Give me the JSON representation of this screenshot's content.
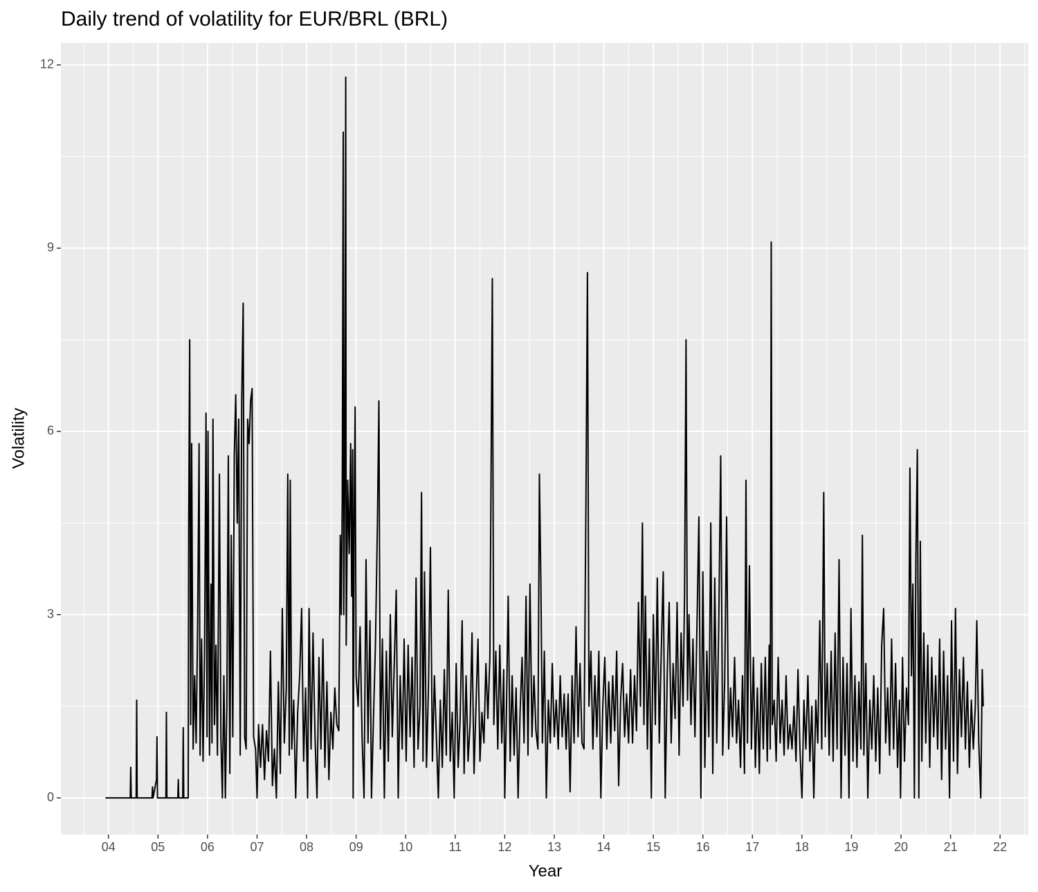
{
  "chart_data": {
    "type": "line",
    "title": "Daily trend of volatility for EUR/BRL (BRL)",
    "x_label": "Year",
    "y_label": "Volatility",
    "x": [
      2003.94,
      2004.44,
      2004.45,
      2004.46,
      2004.56,
      2004.57,
      2004.58,
      2004.88,
      2004.89,
      2004.9,
      2004.97,
      2004.98,
      2004.99,
      2005.16,
      2005.17,
      2005.18,
      2005.4,
      2005.41,
      2005.42,
      2005.5,
      2005.51,
      2005.52,
      2005.61,
      2005.62,
      2005.64,
      2005.66,
      2005.68,
      2005.71,
      2005.74,
      2005.77,
      2005.8,
      2005.83,
      2005.85,
      2005.88,
      2005.91,
      2005.94,
      2005.97,
      2005.99,
      2006.01,
      2006.04,
      2006.07,
      2006.09,
      2006.11,
      2006.14,
      2006.17,
      2006.2,
      2006.24,
      2006.27,
      2006.3,
      2006.33,
      2006.36,
      2006.39,
      2006.42,
      2006.45,
      2006.48,
      2006.51,
      2006.54,
      2006.57,
      2006.6,
      2006.63,
      2006.66,
      2006.69,
      2006.72,
      2006.75,
      2006.78,
      2006.81,
      2006.84,
      2006.87,
      2006.9,
      2006.93,
      2006.97,
      2007.0,
      2007.03,
      2007.07,
      2007.11,
      2007.15,
      2007.19,
      2007.23,
      2007.27,
      2007.31,
      2007.35,
      2007.39,
      2007.43,
      2007.47,
      2007.51,
      2007.55,
      2007.59,
      2007.62,
      2007.65,
      2007.67,
      2007.7,
      2007.74,
      2007.78,
      2007.82,
      2007.86,
      2007.9,
      2007.94,
      2007.98,
      2008.02,
      2008.05,
      2008.09,
      2008.13,
      2008.17,
      2008.21,
      2008.25,
      2008.29,
      2008.33,
      2008.37,
      2008.41,
      2008.45,
      2008.49,
      2008.53,
      2008.57,
      2008.61,
      2008.65,
      2008.68,
      2008.7,
      2008.72,
      2008.74,
      2008.75,
      2008.77,
      2008.79,
      2008.8,
      2008.83,
      2008.86,
      2008.89,
      2008.91,
      2008.93,
      2008.94,
      2008.96,
      2008.98,
      2009.0,
      2009.04,
      2009.08,
      2009.12,
      2009.16,
      2009.2,
      2009.24,
      2009.28,
      2009.31,
      2009.35,
      2009.39,
      2009.43,
      2009.46,
      2009.49,
      2009.53,
      2009.57,
      2009.61,
      2009.65,
      2009.69,
      2009.73,
      2009.77,
      2009.81,
      2009.85,
      2009.89,
      2009.93,
      2009.97,
      2010.01,
      2010.05,
      2010.09,
      2010.13,
      2010.17,
      2010.21,
      2010.25,
      2010.29,
      2010.32,
      2010.35,
      2010.38,
      2010.42,
      2010.46,
      2010.5,
      2010.54,
      2010.58,
      2010.62,
      2010.66,
      2010.7,
      2010.74,
      2010.78,
      2010.82,
      2010.86,
      2010.9,
      2010.94,
      2010.98,
      2011.02,
      2011.06,
      2011.1,
      2011.14,
      2011.18,
      2011.22,
      2011.26,
      2011.3,
      2011.34,
      2011.38,
      2011.42,
      2011.46,
      2011.5,
      2011.54,
      2011.58,
      2011.62,
      2011.66,
      2011.7,
      2011.75,
      2011.78,
      2011.82,
      2011.86,
      2011.9,
      2011.94,
      2011.98,
      2012.0,
      2012.03,
      2012.07,
      2012.11,
      2012.15,
      2012.19,
      2012.23,
      2012.27,
      2012.31,
      2012.35,
      2012.39,
      2012.43,
      2012.47,
      2012.51,
      2012.55,
      2012.59,
      2012.63,
      2012.67,
      2012.7,
      2012.73,
      2012.76,
      2012.8,
      2012.84,
      2012.88,
      2012.92,
      2012.96,
      2013.0,
      2013.04,
      2013.08,
      2013.12,
      2013.16,
      2013.2,
      2013.24,
      2013.28,
      2013.32,
      2013.36,
      2013.4,
      2013.44,
      2013.48,
      2013.52,
      2013.56,
      2013.6,
      2013.64,
      2013.67,
      2013.7,
      2013.74,
      2013.78,
      2013.82,
      2013.86,
      2013.9,
      2013.94,
      2013.98,
      2014.02,
      2014.06,
      2014.1,
      2014.14,
      2014.18,
      2014.22,
      2014.26,
      2014.3,
      2014.34,
      2014.38,
      2014.42,
      2014.46,
      2014.5,
      2014.54,
      2014.58,
      2014.62,
      2014.66,
      2014.7,
      2014.74,
      2014.78,
      2014.81,
      2014.84,
      2014.88,
      2014.92,
      2014.96,
      2015.0,
      2015.04,
      2015.08,
      2015.12,
      2015.16,
      2015.2,
      2015.24,
      2015.28,
      2015.32,
      2015.36,
      2015.4,
      2015.44,
      2015.48,
      2015.52,
      2015.56,
      2015.6,
      2015.63,
      2015.66,
      2015.69,
      2015.72,
      2015.76,
      2015.8,
      2015.84,
      2015.88,
      2015.92,
      2015.96,
      2016.0,
      2016.04,
      2016.08,
      2016.12,
      2016.16,
      2016.2,
      2016.24,
      2016.28,
      2016.32,
      2016.36,
      2016.4,
      2016.44,
      2016.48,
      2016.52,
      2016.56,
      2016.6,
      2016.64,
      2016.68,
      2016.72,
      2016.76,
      2016.8,
      2016.84,
      2016.87,
      2016.9,
      2016.94,
      2016.98,
      2017.02,
      2017.06,
      2017.1,
      2017.14,
      2017.18,
      2017.22,
      2017.26,
      2017.3,
      2017.34,
      2017.36,
      2017.38,
      2017.4,
      2017.44,
      2017.48,
      2017.52,
      2017.56,
      2017.6,
      2017.64,
      2017.68,
      2017.72,
      2017.76,
      2017.8,
      2017.84,
      2017.88,
      2017.92,
      2017.96,
      2018.0,
      2018.04,
      2018.08,
      2018.12,
      2018.16,
      2018.2,
      2018.24,
      2018.28,
      2018.32,
      2018.36,
      2018.4,
      2018.44,
      2018.47,
      2018.51,
      2018.55,
      2018.59,
      2018.63,
      2018.67,
      2018.71,
      2018.75,
      2018.79,
      2018.83,
      2018.87,
      2018.91,
      2018.95,
      2018.99,
      2019.03,
      2019.07,
      2019.11,
      2019.15,
      2019.19,
      2019.22,
      2019.25,
      2019.29,
      2019.33,
      2019.37,
      2019.41,
      2019.45,
      2019.49,
      2019.53,
      2019.57,
      2019.61,
      2019.65,
      2019.69,
      2019.73,
      2019.77,
      2019.81,
      2019.85,
      2019.89,
      2019.93,
      2019.97,
      2019.99,
      2020.03,
      2020.07,
      2020.11,
      2020.15,
      2020.18,
      2020.21,
      2020.24,
      2020.27,
      2020.3,
      2020.33,
      2020.36,
      2020.39,
      2020.42,
      2020.46,
      2020.5,
      2020.54,
      2020.58,
      2020.62,
      2020.66,
      2020.7,
      2020.74,
      2020.78,
      2020.82,
      2020.86,
      2020.9,
      2020.94,
      2020.98,
      2021.02,
      2021.06,
      2021.1,
      2021.14,
      2021.18,
      2021.22,
      2021.26,
      2021.3,
      2021.34,
      2021.38,
      2021.42,
      2021.46,
      2021.5,
      2021.53,
      2021.57,
      2021.61,
      2021.64,
      2021.66
    ],
    "series": [
      {
        "color": "#000000",
        "values": [
          0,
          0,
          0.5,
          0,
          0,
          1.6,
          0,
          0,
          0.18,
          0,
          0.3,
          1.0,
          0,
          0,
          1.4,
          0,
          0,
          0.3,
          0,
          0,
          1.15,
          0,
          0,
          4.4,
          7.5,
          1.2,
          5.8,
          0.8,
          2.0,
          0.9,
          2.8,
          5.8,
          0.7,
          2.6,
          0.6,
          2.4,
          6.3,
          1.0,
          6.0,
          0.7,
          3.5,
          0.9,
          6.2,
          1.2,
          2.5,
          0.7,
          5.3,
          1.0,
          0,
          2.0,
          0,
          1.5,
          5.6,
          0.4,
          4.3,
          1.0,
          5.6,
          6.6,
          4.5,
          6.2,
          0.7,
          6.5,
          8.1,
          1.0,
          0.8,
          6.2,
          5.8,
          6.5,
          6.7,
          1.0,
          0.8,
          0,
          1.2,
          0.5,
          1.2,
          0.3,
          1.1,
          0.6,
          2.4,
          0.2,
          0.8,
          0,
          1.9,
          0.4,
          3.1,
          0.9,
          1.8,
          5.3,
          0.7,
          5.2,
          0.8,
          1.6,
          0,
          1.4,
          2.0,
          3.1,
          0.6,
          1.8,
          0,
          3.1,
          0.8,
          2.7,
          1.0,
          0,
          2.3,
          0.8,
          2.6,
          0.5,
          1.9,
          0.3,
          1.4,
          0.8,
          1.8,
          1.2,
          1.1,
          4.3,
          3.0,
          4.9,
          10.9,
          3.0,
          5.2,
          11.8,
          2.5,
          5.2,
          4.0,
          5.8,
          3.3,
          5.7,
          0,
          4.5,
          6.4,
          2.0,
          1.5,
          2.8,
          1.0,
          0,
          3.9,
          0.9,
          2.9,
          0,
          1.3,
          2.5,
          4.5,
          6.5,
          0.8,
          2.6,
          0,
          2.4,
          0.6,
          3.0,
          1.0,
          2.2,
          3.4,
          0,
          2.0,
          0.8,
          2.6,
          0.6,
          2.5,
          1.0,
          2.3,
          0.5,
          3.6,
          0.8,
          1.5,
          5.0,
          0.6,
          3.7,
          0.5,
          1.8,
          4.1,
          0.6,
          2.0,
          1.0,
          0,
          1.6,
          0.5,
          2.1,
          0.7,
          3.4,
          0.6,
          1.4,
          0,
          2.2,
          0.5,
          1.3,
          2.9,
          0.4,
          2.0,
          0.6,
          1.2,
          2.7,
          0.4,
          1.5,
          2.6,
          0.6,
          1.4,
          0.9,
          2.2,
          1.3,
          2.3,
          8.5,
          1.2,
          2.4,
          0.8,
          2.5,
          0.9,
          2.1,
          0,
          1.2,
          3.3,
          0.6,
          2.0,
          0.7,
          1.8,
          0,
          1.4,
          2.3,
          0.9,
          3.3,
          0.7,
          3.5,
          1.0,
          2.0,
          1.1,
          0.8,
          5.3,
          3.5,
          0.9,
          2.4,
          0,
          1.6,
          0.9,
          2.2,
          1.0,
          1.6,
          0.8,
          2.0,
          1.0,
          1.7,
          0.8,
          1.7,
          0.1,
          2.0,
          0.9,
          2.8,
          1.0,
          2.2,
          0.9,
          0.8,
          4.9,
          8.6,
          1.5,
          2.4,
          0.8,
          2.0,
          1.0,
          2.4,
          0,
          1.5,
          2.3,
          0.8,
          1.9,
          0.9,
          2.0,
          1.1,
          2.4,
          0.2,
          1.6,
          2.2,
          1.0,
          1.7,
          0.9,
          2.1,
          0.9,
          2.0,
          1.1,
          3.2,
          1.5,
          4.5,
          1.2,
          3.3,
          0.8,
          2.6,
          0,
          3.0,
          1.2,
          3.6,
          0.9,
          2.4,
          3.7,
          0,
          2.0,
          3.2,
          0.9,
          2.2,
          1.3,
          3.2,
          0.7,
          2.7,
          1.5,
          3.3,
          7.5,
          1.6,
          3.0,
          1.2,
          2.6,
          1.0,
          2.8,
          4.6,
          0,
          3.7,
          0.5,
          2.4,
          1.0,
          4.5,
          0.4,
          3.6,
          0.9,
          2.8,
          5.6,
          0.7,
          1.9,
          4.6,
          0.8,
          1.8,
          1.0,
          2.3,
          0.9,
          1.6,
          0.5,
          2.0,
          0.4,
          5.2,
          0.9,
          3.8,
          0.8,
          2.3,
          0.5,
          1.8,
          0.4,
          2.2,
          0.8,
          2.3,
          0.6,
          2.5,
          0.8,
          9.1,
          1.2,
          1.6,
          0.6,
          2.3,
          0.9,
          1.6,
          0.7,
          2.0,
          0.8,
          1.2,
          0.8,
          1.5,
          0.6,
          2.1,
          0.8,
          0,
          1.6,
          0.8,
          2.0,
          0.6,
          1.5,
          0,
          1.6,
          0.9,
          2.9,
          0.8,
          5.0,
          1.0,
          2.2,
          0.7,
          2.4,
          0.6,
          2.7,
          0.8,
          3.9,
          0,
          2.3,
          0.7,
          2.2,
          0,
          3.1,
          0.6,
          2.0,
          0.5,
          1.9,
          0.8,
          4.3,
          0.7,
          2.2,
          0,
          1.6,
          0.8,
          2.0,
          0.6,
          1.8,
          0.4,
          2.5,
          3.1,
          0.9,
          1.8,
          0.7,
          2.6,
          0.8,
          2.2,
          0.5,
          1.6,
          0,
          2.3,
          0.6,
          1.8,
          1.2,
          5.4,
          2.0,
          3.5,
          0,
          3.9,
          5.7,
          0,
          4.2,
          0.6,
          2.7,
          0.9,
          2.5,
          0.5,
          2.3,
          1.0,
          2.0,
          0.8,
          2.6,
          0.3,
          2.4,
          0.8,
          2.0,
          0,
          2.9,
          0.6,
          3.1,
          0.4,
          2.1,
          1.0,
          2.3,
          0.8,
          1.9,
          0.5,
          1.6,
          0.8,
          1.5,
          2.9,
          0.9,
          0,
          2.1,
          1.5
        ]
      }
    ],
    "xlim": [
      2003.04,
      2022.57
    ],
    "ylim": [
      -0.6,
      12.36
    ],
    "xticks": [
      {
        "value": 2004,
        "label": "04"
      },
      {
        "value": 2005,
        "label": "05"
      },
      {
        "value": 2006,
        "label": "06"
      },
      {
        "value": 2007,
        "label": "07"
      },
      {
        "value": 2008,
        "label": "08"
      },
      {
        "value": 2009,
        "label": "09"
      },
      {
        "value": 2010,
        "label": "10"
      },
      {
        "value": 2011,
        "label": "11"
      },
      {
        "value": 2012,
        "label": "12"
      },
      {
        "value": 2013,
        "label": "13"
      },
      {
        "value": 2014,
        "label": "14"
      },
      {
        "value": 2015,
        "label": "15"
      },
      {
        "value": 2016,
        "label": "16"
      },
      {
        "value": 2017,
        "label": "17"
      },
      {
        "value": 2018,
        "label": "18"
      },
      {
        "value": 2019,
        "label": "19"
      },
      {
        "value": 2020,
        "label": "20"
      },
      {
        "value": 2021,
        "label": "21"
      },
      {
        "value": 2022,
        "label": "22"
      }
    ],
    "yticks": [
      0,
      3,
      6,
      9,
      12
    ],
    "grid": true
  }
}
